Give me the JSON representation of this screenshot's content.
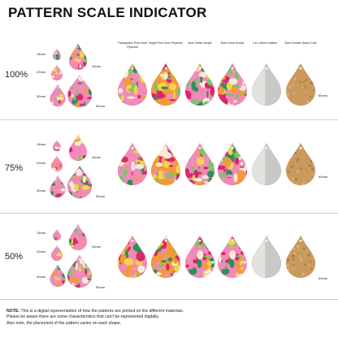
{
  "title": "PATTERN SCALE INDICATOR",
  "materials": [
    "Transparent Print 3mm Plywood",
    "Bright Print 3mm Plywood",
    "3mm White Acrylic",
    "3mm Clear Acrylic",
    "1.6-1.8mm Leather",
    "3mm Double Sided Cork"
  ],
  "rows": [
    {
      "scale": "100%",
      "sizes": [
        "15mm",
        "20mm",
        "30mm",
        "40mm",
        "50mm"
      ],
      "big_size": "60mm"
    },
    {
      "scale": "75%",
      "sizes": [
        "15mm",
        "20mm",
        "30mm",
        "40mm",
        "50mm"
      ],
      "big_size": "60mm"
    },
    {
      "scale": "50%",
      "sizes": [
        "15mm",
        "20mm",
        "30mm",
        "40mm",
        "50mm"
      ],
      "big_size": "60mm"
    }
  ],
  "note": {
    "label": "NOTE:",
    "line1": "This is a digital representation of how the patterns are printed on the different materials.",
    "line2": "Please be aware there are some characteristics that can't be represented digitally.",
    "line3": "Also note, the placement of the pattern varies on each shape."
  },
  "colors": {
    "pink": "#f28ab8",
    "orange": "#f29a3a",
    "yellow": "#f5d24a",
    "magenta": "#d8286e",
    "green": "#2f8f5a",
    "leaf": "#7cc36e",
    "cork": "#c99a5b",
    "leather": "#c8c8c4",
    "cream": "#f7ead6"
  }
}
